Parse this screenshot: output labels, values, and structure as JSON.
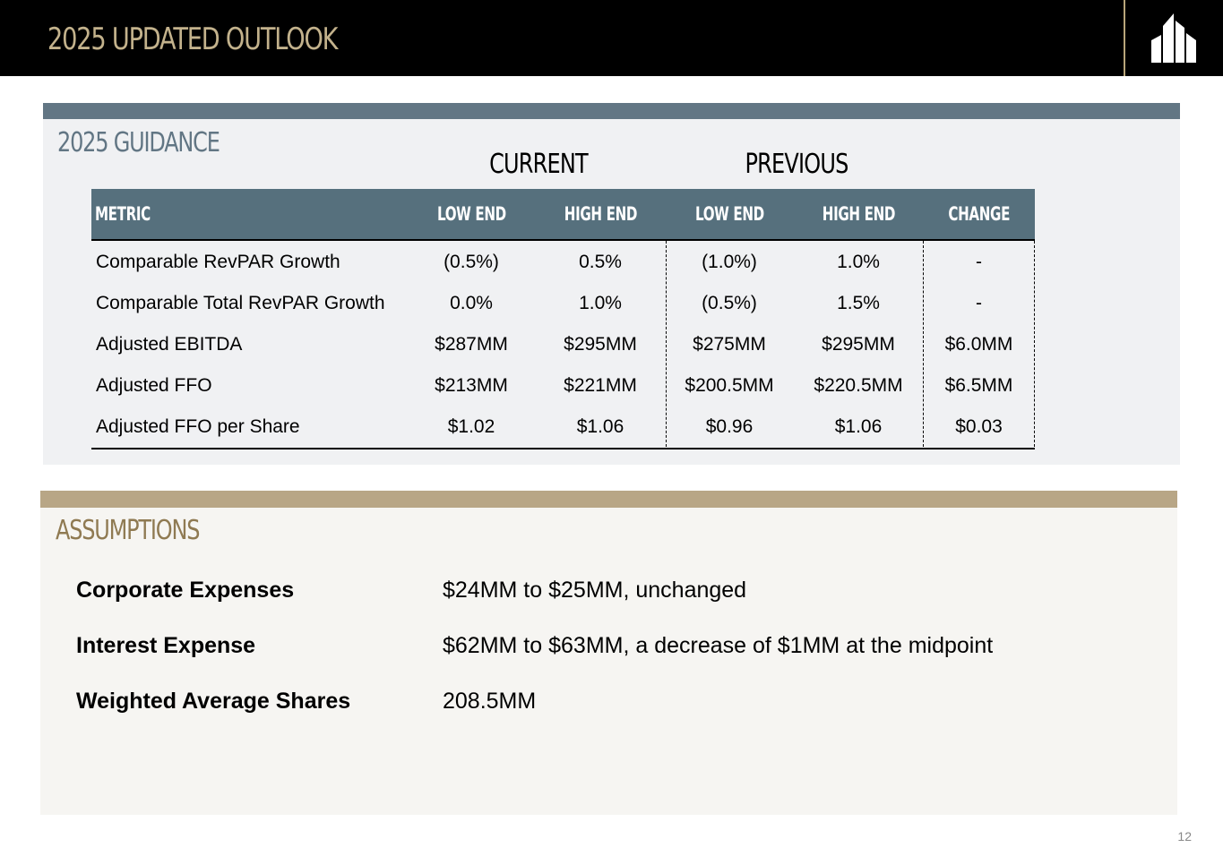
{
  "header": {
    "title": "2025 UPDATED OUTLOOK",
    "logo_icon": "building-logo-icon"
  },
  "guidance": {
    "title": "2025 GUIDANCE",
    "group_current": "CURRENT",
    "group_previous": "PREVIOUS",
    "columns": [
      "METRIC",
      "LOW END",
      "HIGH END",
      "LOW END",
      "HIGH END",
      "CHANGE"
    ],
    "rows": [
      [
        "Comparable RevPAR Growth",
        "(0.5%)",
        "0.5%",
        "(1.0%)",
        "1.0%",
        "-"
      ],
      [
        "Comparable Total RevPAR Growth",
        "0.0%",
        "1.0%",
        "(0.5%)",
        "1.5%",
        "-"
      ],
      [
        "Adjusted EBITDA",
        "$287MM",
        "$295MM",
        "$275MM",
        "$295MM",
        "$6.0MM"
      ],
      [
        "Adjusted FFO",
        "$213MM",
        "$221MM",
        "$200.5MM",
        "$220.5MM",
        "$6.5MM"
      ],
      [
        "Adjusted FFO per Share",
        "$1.02",
        "$1.06",
        "$0.96",
        "$1.06",
        "$0.03"
      ]
    ]
  },
  "assumptions": {
    "title": "ASSUMPTIONS",
    "items": [
      {
        "label": "Corporate Expenses",
        "value": "$24MM to $25MM, unchanged"
      },
      {
        "label": "Interest Expense",
        "value": "$62MM to $63MM, a decrease of $1MM at the midpoint"
      },
      {
        "label": "Weighted Average Shares",
        "value": "208.5MM"
      }
    ]
  },
  "page_number": "12",
  "colors": {
    "header_bg": "#000000",
    "title_gold": "#c3b28c",
    "slate": "#56707d",
    "tan": "#b8a686"
  }
}
